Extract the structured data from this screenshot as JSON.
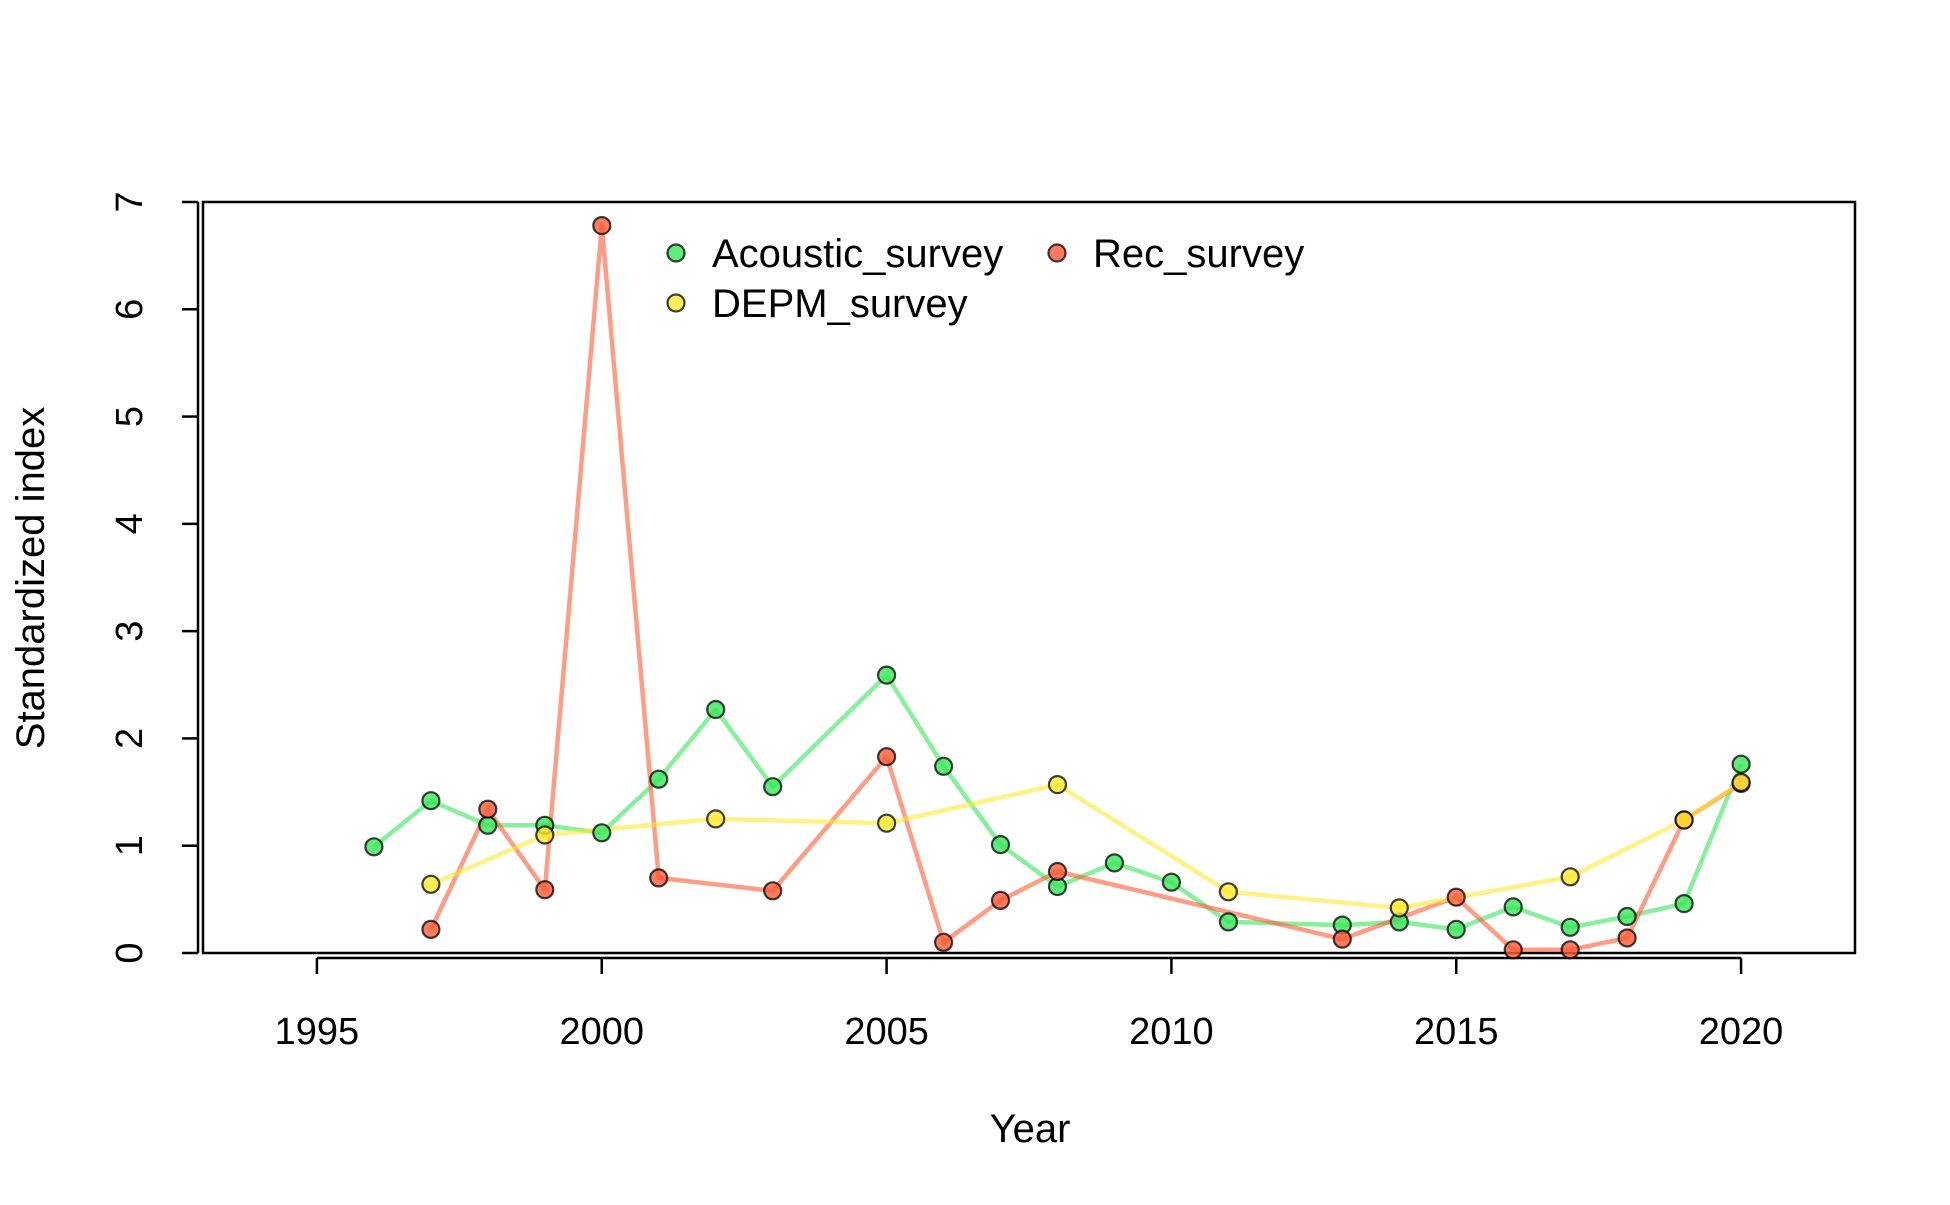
{
  "chart_data": {
    "type": "line",
    "xlabel": "Year",
    "ylabel": "Standardized index",
    "xlim": [
      1993,
      2022
    ],
    "ylim": [
      0,
      7
    ],
    "xticks": [
      "1995",
      "2000",
      "2005",
      "2010",
      "2015",
      "2020"
    ],
    "yticks": [
      "0",
      "1",
      "2",
      "3",
      "4",
      "5",
      "6",
      "7"
    ],
    "grid": false,
    "legend_position": "top-center",
    "series": [
      {
        "name": "Acoustic_survey",
        "color": "#39e65a",
        "x": [
          1996,
          1997,
          1998,
          1999,
          2000,
          2001,
          2002,
          2003,
          2005,
          2006,
          2007,
          2008,
          2009,
          2010,
          2011,
          2013,
          2014,
          2015,
          2016,
          2017,
          2018,
          2019,
          2020
        ],
        "y": [
          0.99,
          1.42,
          1.19,
          1.19,
          1.12,
          1.62,
          2.27,
          1.55,
          2.59,
          1.74,
          1.01,
          0.62,
          0.84,
          0.66,
          0.29,
          0.26,
          0.29,
          0.22,
          0.43,
          0.24,
          0.34,
          0.46,
          1.76
        ]
      },
      {
        "name": "Rec_survey",
        "color": "#ff5a36",
        "x": [
          1997,
          1998,
          1999,
          2000,
          2001,
          2003,
          2005,
          2006,
          2007,
          2008,
          2013,
          2015,
          2016,
          2017,
          2018,
          2019,
          2020
        ],
        "y": [
          0.22,
          1.34,
          0.59,
          6.78,
          0.7,
          0.58,
          1.83,
          0.1,
          0.49,
          0.76,
          0.13,
          0.52,
          0.03,
          0.03,
          0.14,
          1.24,
          1.58
        ]
      },
      {
        "name": "DEPM_survey",
        "color": "#ffe830",
        "x": [
          1997,
          1999,
          2002,
          2005,
          2008,
          2011,
          2014,
          2017,
          2019,
          2020
        ],
        "y": [
          0.64,
          1.1,
          1.25,
          1.21,
          1.57,
          0.57,
          0.42,
          0.71,
          1.24,
          1.59
        ]
      }
    ]
  }
}
